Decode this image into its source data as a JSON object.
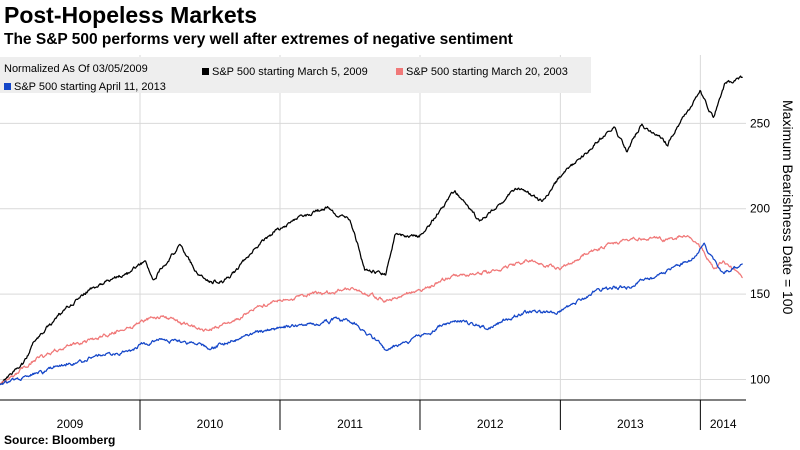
{
  "header": {
    "title": "Post-Hopeless Markets",
    "subtitle": "The S&P 500 performs very well after extremes of negative sentiment"
  },
  "footer": {
    "source": "Source: Bloomberg"
  },
  "chart_data": {
    "type": "line",
    "legend_title": "Normalized As Of 03/05/2009",
    "legend_position": "top-left",
    "ylabel": "Maximum Bearishness Date = 100",
    "y_axis_side": "right",
    "ylim": [
      88,
      290
    ],
    "yticks": [
      100,
      150,
      200,
      250
    ],
    "xlim": [
      "2009-01-01",
      "2014-04-30"
    ],
    "x_period_labels": [
      "2009",
      "2010",
      "2011",
      "2012",
      "2013",
      "2014"
    ],
    "x_period_boundaries": [
      "2010-01-01",
      "2011-01-01",
      "2012-01-01",
      "2013-01-01",
      "2014-01-01"
    ],
    "grid": true,
    "series": [
      {
        "name": "S&P 500 starting March 5, 2009",
        "color": "#000000",
        "x": [
          "2009-01-01",
          "2009-02-01",
          "2009-03-01",
          "2009-04-01",
          "2009-06-01",
          "2009-08-01",
          "2009-10-01",
          "2009-12-01",
          "2010-01-15",
          "2010-02-05",
          "2010-04-15",
          "2010-05-25",
          "2010-07-05",
          "2010-08-25",
          "2010-11-01",
          "2011-01-01",
          "2011-04-29",
          "2011-07-01",
          "2011-08-10",
          "2011-10-04",
          "2011-10-28",
          "2011-12-31",
          "2012-04-01",
          "2012-06-04",
          "2012-09-14",
          "2012-11-15",
          "2013-01-15",
          "2013-05-21",
          "2013-06-24",
          "2013-08-01",
          "2013-10-08",
          "2013-12-31",
          "2014-02-04",
          "2014-03-07",
          "2014-04-22"
        ],
        "values": [
          97,
          103,
          108,
          122,
          136,
          150,
          157,
          163,
          170,
          158,
          178,
          164,
          157,
          160,
          178,
          189,
          201,
          195,
          165,
          163,
          185,
          183,
          210,
          193,
          212,
          204,
          222,
          248,
          234,
          250,
          240,
          270,
          253,
          273,
          277
        ]
      },
      {
        "name": "S&P 500 starting March 20, 2003",
        "color": "#f07878",
        "x": [
          "2009-01-01",
          "2009-04-01",
          "2009-08-01",
          "2009-12-01",
          "2010-03-01",
          "2010-07-01",
          "2010-11-01",
          "2011-03-01",
          "2011-07-01",
          "2011-10-01",
          "2012-01-01",
          "2012-04-01",
          "2012-07-01",
          "2012-10-01",
          "2013-01-01",
          "2013-04-01",
          "2013-07-01",
          "2013-10-01",
          "2013-12-01",
          "2014-01-10",
          "2014-02-05",
          "2014-03-01",
          "2014-04-22"
        ],
        "values": [
          97,
          112,
          122,
          130,
          137,
          128,
          142,
          148,
          152,
          146,
          152,
          160,
          162,
          170,
          166,
          176,
          183,
          182,
          185,
          175,
          165,
          170,
          160
        ]
      },
      {
        "name": "S&P 500 starting April 11, 2013",
        "color": "#1446c8",
        "x": [
          "2009-01-01",
          "2009-04-01",
          "2009-08-01",
          "2009-12-01",
          "2010-03-01",
          "2010-07-01",
          "2010-11-01",
          "2011-03-01",
          "2011-07-01",
          "2011-10-01",
          "2012-01-01",
          "2012-04-01",
          "2012-07-01",
          "2012-10-01",
          "2013-01-01",
          "2013-04-01",
          "2013-07-01",
          "2013-10-01",
          "2013-12-15",
          "2014-01-10",
          "2014-02-05",
          "2014-03-01",
          "2014-04-22"
        ],
        "values": [
          97,
          104,
          111,
          117,
          123,
          118,
          128,
          133,
          135,
          118,
          125,
          133,
          130,
          140,
          140,
          152,
          156,
          162,
          172,
          180,
          170,
          163,
          166
        ]
      }
    ]
  }
}
